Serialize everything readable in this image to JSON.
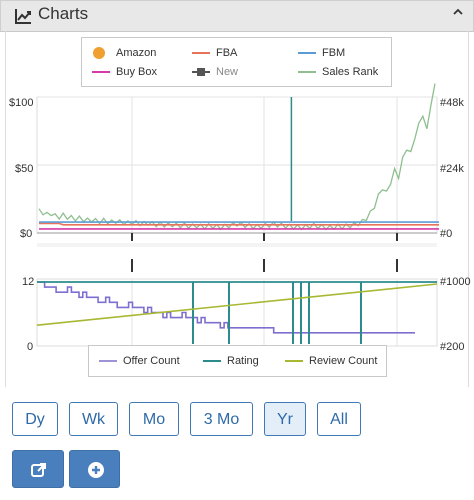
{
  "header": {
    "title": "Charts",
    "icon": "line-chart-icon",
    "collapse_icon": "chevron-up-icon"
  },
  "legend_top": [
    {
      "label": "Amazon",
      "color": "#f0a030",
      "marker": "dot"
    },
    {
      "label": "FBA",
      "color": "#e8735a",
      "marker": "line"
    },
    {
      "label": "FBM",
      "color": "#5b9bd5",
      "marker": "line"
    },
    {
      "label": "Buy Box",
      "color": "#d63aa8",
      "marker": "line"
    },
    {
      "label": "New",
      "color": "#555555",
      "marker": "square-line",
      "muted": true
    },
    {
      "label": "Sales Rank",
      "color": "#8fbf8f",
      "marker": "line"
    }
  ],
  "legend_bottom": [
    {
      "label": "Offer Count",
      "color": "#9b93d6"
    },
    {
      "label": "Rating",
      "color": "#2e8b8b"
    },
    {
      "label": "Review Count",
      "color": "#a8b832"
    }
  ],
  "price_axis": {
    "left": [
      "$100",
      "$50",
      "$0"
    ],
    "right": [
      "#48k",
      "#24k",
      "#0"
    ]
  },
  "offer_axis": {
    "left": [
      "12",
      "0"
    ],
    "right": [
      "#1000",
      "#200"
    ]
  },
  "chart_data": [
    {
      "type": "line",
      "title": "",
      "ylim": [
        0,
        100
      ],
      "y2lim": [
        0,
        48000
      ],
      "series": [
        {
          "name": "Sales Rank",
          "axis": "right",
          "color": "#8fbf8f",
          "values": [
            7800,
            7200,
            6500,
            6900,
            6000,
            5700,
            6200,
            5600,
            5400,
            5000,
            5200,
            4800,
            4500,
            4700,
            4300,
            4100,
            4400,
            4000,
            3800,
            4200,
            3900,
            3700,
            3500,
            3800,
            3600,
            3400,
            3300,
            3500,
            3200,
            3000,
            3100,
            2900,
            2800,
            3000,
            2700,
            2600,
            2800,
            2500,
            2400,
            2600,
            2300,
            2200,
            2500,
            2400,
            2200,
            2100,
            2300,
            2600,
            2900,
            3200,
            3000,
            2700,
            2500,
            2300,
            2200,
            2400,
            2600,
            2800,
            3100,
            2900,
            2700,
            2500,
            2300,
            2200,
            2100,
            2000,
            2200,
            2400,
            2600,
            2400,
            2200,
            2000,
            1900,
            2100,
            2300,
            2200,
            2400,
            2600,
            2900,
            3300,
            4000,
            5200,
            7000,
            9500,
            13000,
            16000,
            14000,
            18000,
            22000,
            20000,
            26000,
            30000,
            28000,
            34000,
            38000,
            42000,
            36000,
            46000,
            52000
          ]
        },
        {
          "name": "Buy Box",
          "axis": "left",
          "color": "#d63aa8",
          "values": [
            3,
            3,
            3,
            3,
            3,
            3,
            3,
            3,
            3,
            3,
            3,
            3,
            3,
            3,
            3,
            3,
            3,
            3,
            3,
            3,
            3,
            3,
            3,
            3,
            3,
            3,
            3,
            3,
            3,
            3,
            3,
            3,
            3,
            3,
            3,
            3,
            3,
            3,
            3,
            3,
            3,
            3,
            3,
            3,
            3,
            3,
            3,
            3,
            3,
            3,
            3,
            3,
            3,
            3,
            3,
            3,
            3,
            3,
            3,
            3,
            3,
            3,
            3,
            3,
            3,
            3,
            3,
            3,
            3,
            3,
            3,
            3,
            3,
            3,
            3,
            3,
            3,
            3,
            3,
            3,
            3,
            3,
            3,
            3,
            3,
            3,
            3,
            3,
            3,
            3,
            3,
            3,
            3,
            3,
            3,
            3,
            3,
            3,
            3,
            3
          ]
        },
        {
          "name": "FBA",
          "axis": "left",
          "color": "#e8735a",
          "values": [
            7,
            7,
            7,
            7,
            7,
            7,
            6,
            6,
            6,
            6,
            6,
            6,
            6,
            6,
            6,
            6,
            6,
            6,
            6,
            6,
            6,
            6,
            6,
            6,
            6,
            6,
            6,
            6,
            6,
            6,
            6,
            6,
            6,
            6,
            6,
            6,
            6,
            6,
            6,
            6,
            6,
            6,
            6,
            6,
            6,
            6,
            6,
            6,
            6,
            6,
            6,
            6,
            6,
            6,
            6,
            6,
            6,
            6,
            6,
            6,
            6,
            6,
            6,
            6,
            6,
            6,
            6,
            6,
            6,
            6,
            6,
            6,
            6,
            6,
            6,
            6,
            6,
            6,
            6,
            6,
            6,
            6,
            6,
            6,
            6,
            6,
            6,
            6,
            6,
            6,
            6,
            6,
            6,
            6,
            6,
            6,
            6,
            6,
            6,
            6
          ]
        },
        {
          "name": "FBM",
          "axis": "left",
          "color": "#5b9bd5",
          "values": [
            8,
            8,
            8,
            8,
            8,
            8,
            8,
            8,
            8,
            8,
            8,
            8,
            8,
            8,
            8,
            8,
            8,
            8,
            8,
            8,
            8,
            8,
            8,
            8,
            8,
            8,
            8,
            8,
            8,
            8,
            8,
            8,
            8,
            8,
            8,
            8,
            8,
            8,
            8,
            8,
            8,
            8,
            8,
            8,
            8,
            8,
            8,
            8,
            8,
            8,
            8,
            8,
            8,
            8,
            8,
            8,
            8,
            8,
            8,
            8,
            8,
            8,
            8,
            8,
            8,
            8,
            8,
            8,
            8,
            8,
            8,
            8,
            8,
            8,
            8,
            8,
            8,
            8,
            8,
            8,
            8,
            8,
            8,
            8,
            8,
            8,
            8,
            8,
            8,
            8,
            8,
            8,
            8,
            8,
            8,
            8,
            8,
            8,
            8,
            8
          ]
        }
      ],
      "spikes": [
        {
          "at": 0.636,
          "value": 100,
          "color": "#2e8b8b"
        }
      ]
    },
    {
      "type": "line",
      "title": "",
      "ylim": [
        0,
        12
      ],
      "series": [
        {
          "name": "Offer Count",
          "color": "#7d6fd0",
          "values": [
            12,
            12,
            11,
            11,
            11,
            10,
            10,
            10,
            11,
            10,
            10,
            9,
            10,
            9,
            9,
            9,
            8,
            8,
            9,
            8,
            8,
            7,
            7,
            7,
            8,
            7,
            7,
            7,
            6,
            7,
            6,
            6,
            6,
            5,
            6,
            5,
            5,
            5,
            6,
            5,
            5,
            5,
            4,
            5,
            4,
            4,
            4,
            4,
            3,
            4,
            3,
            3,
            3,
            3,
            3,
            3,
            3,
            3,
            3,
            3,
            3,
            3,
            2,
            2,
            2,
            2,
            2,
            2,
            2,
            2,
            2,
            2,
            2,
            2,
            2,
            2,
            2,
            2,
            2,
            2,
            2,
            2,
            2,
            2,
            2,
            2,
            2,
            2,
            2,
            2,
            2,
            2,
            2,
            2,
            2,
            2,
            2,
            2,
            2,
            2
          ]
        },
        {
          "name": "Rating",
          "color": "#2e8b8b",
          "values": [
            12,
            12,
            12,
            12,
            12,
            12,
            12,
            12,
            12,
            12,
            12,
            12,
            12,
            12,
            12,
            12,
            12,
            12,
            12,
            12,
            12,
            12,
            12,
            12,
            12,
            12,
            12,
            12,
            12,
            12,
            12,
            12,
            12,
            12,
            12,
            12,
            12,
            12,
            12,
            12,
            12,
            12,
            12,
            12,
            12,
            12,
            12,
            12,
            12,
            12,
            12,
            12,
            12,
            12,
            12,
            12,
            12,
            12,
            12,
            12,
            12,
            12,
            12,
            12,
            12,
            12,
            12,
            12,
            12,
            12,
            12,
            12,
            12,
            12,
            12,
            12,
            12,
            12,
            12,
            12,
            12,
            12,
            12,
            12,
            12,
            12,
            12,
            12,
            12,
            12,
            12,
            12,
            12,
            12,
            12,
            12,
            12,
            12,
            12,
            12
          ]
        },
        {
          "name": "Review Count",
          "color": "#a8b832",
          "values": [
            3.5,
            12
          ]
        }
      ]
    }
  ],
  "range_buttons": [
    {
      "label": "Dy",
      "active": false
    },
    {
      "label": "Wk",
      "active": false
    },
    {
      "label": "Mo",
      "active": false
    },
    {
      "label": "3 Mo",
      "active": false
    },
    {
      "label": "Yr",
      "active": true
    },
    {
      "label": "All",
      "active": false
    }
  ],
  "action_buttons": [
    {
      "icon": "external-link-icon"
    },
    {
      "icon": "plus-circle-icon"
    }
  ]
}
